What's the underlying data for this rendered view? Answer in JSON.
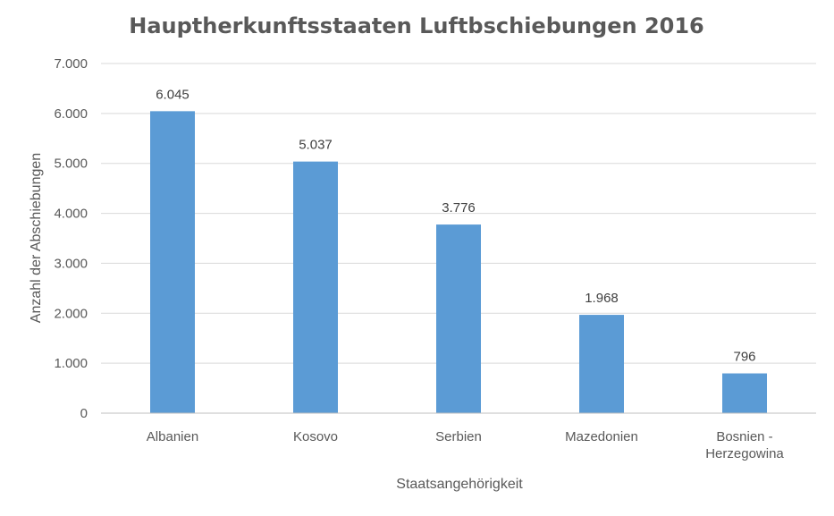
{
  "chart_data": {
    "type": "bar",
    "title": "Hauptherkunftsstaaten Luftbschiebungen 2016",
    "xlabel": "Staatsangehörigkeit",
    "ylabel": "Anzahl der Abschiebungen",
    "categories": [
      [
        "Albanien"
      ],
      [
        "Kosovo"
      ],
      [
        "Serbien"
      ],
      [
        "Mazedonien"
      ],
      [
        "Bosnien -",
        "Herzegowina"
      ]
    ],
    "values": [
      6045,
      5037,
      3776,
      1968,
      796
    ],
    "value_labels": [
      "6.045",
      "5.037",
      "3.776",
      "1.968",
      "796"
    ],
    "ylim": [
      0,
      7000
    ],
    "yticks": [
      0,
      1000,
      2000,
      3000,
      4000,
      5000,
      6000,
      7000
    ],
    "ytick_labels": [
      "0",
      "1.000",
      "2.000",
      "3.000",
      "4.000",
      "5.000",
      "6.000",
      "7.000"
    ],
    "grid": true,
    "bar_color": "#5b9bd5"
  }
}
